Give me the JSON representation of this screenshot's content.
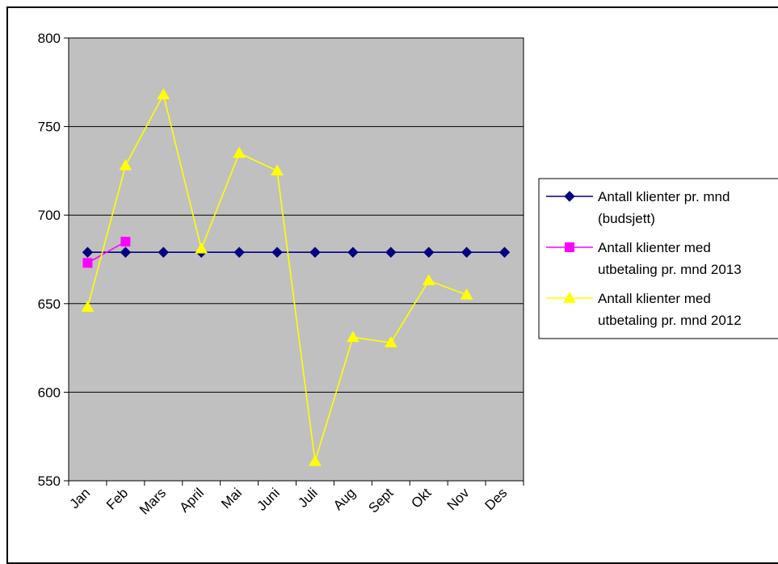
{
  "chart_data": {
    "type": "line",
    "categories": [
      "Jan",
      "Feb",
      "Mars",
      "April",
      "Mai",
      "Juni",
      "Juli",
      "Aug",
      "Sept",
      "Okt",
      "Nov",
      "Des"
    ],
    "ylim": [
      550,
      800
    ],
    "yticks": [
      550,
      600,
      650,
      700,
      750,
      800
    ],
    "grid": true,
    "legend_position": "right",
    "plot_background": "#c0c0c0",
    "series": [
      {
        "name_lines": [
          "Antall klienter pr. mnd",
          "(budsjett)"
        ],
        "color": "#000080",
        "marker": "diamond",
        "values": [
          679,
          679,
          679,
          679,
          679,
          679,
          679,
          679,
          679,
          679,
          679,
          679
        ]
      },
      {
        "name_lines": [
          "Antall klienter med",
          "utbetaling pr. mnd 2013"
        ],
        "color": "#ff00ff",
        "marker": "square",
        "values": [
          673,
          685,
          null,
          null,
          null,
          null,
          null,
          null,
          null,
          null,
          null,
          null
        ]
      },
      {
        "name_lines": [
          "Antall klienter med",
          "utbetaling pr. mnd 2012"
        ],
        "color": "#ffff00",
        "marker": "triangle",
        "values": [
          648,
          728,
          768,
          681,
          735,
          725,
          561,
          631,
          628,
          663,
          655,
          null
        ]
      }
    ]
  }
}
